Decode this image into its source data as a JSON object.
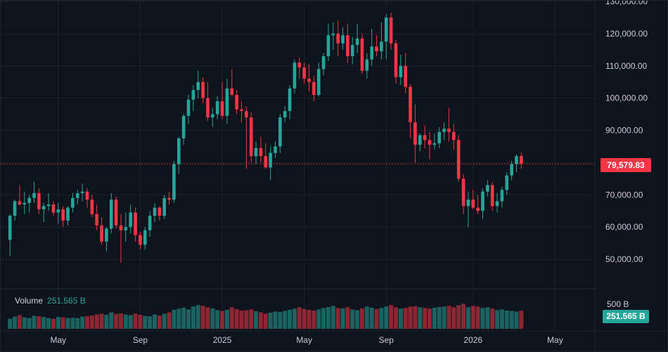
{
  "chart_data": {
    "type": "candlestick",
    "timeframe": "weekly",
    "y_ticks": [
      "130,000.00",
      "120,000.00",
      "110,000.00",
      "100,000.00",
      "90,000.00",
      "80,000.00",
      "70,000.00",
      "60,000.00",
      "50,000.00"
    ],
    "y_tick_values": [
      130000,
      120000,
      110000,
      100000,
      90000,
      80000,
      70000,
      60000,
      50000
    ],
    "x_ticks": [
      "May",
      "Sep",
      "2025",
      "May",
      "Sep",
      "2026",
      "May"
    ],
    "x_tick_index": [
      10,
      27,
      44,
      61,
      78,
      96,
      113
    ],
    "ylim": [
      40000,
      130000
    ],
    "last_price": "79,579.83",
    "last_price_value": 79579.83,
    "volume_label": "Volume",
    "volume_value": "251.565 B",
    "volume_scale_label": "500 B",
    "colors": {
      "up": "#26a69a",
      "down": "#f23645",
      "background": "#0f131c",
      "grid": "#1b2130"
    },
    "candles": [
      [
        56000,
        64000,
        51000,
        63500
      ],
      [
        63500,
        68500,
        62000,
        68000
      ],
      [
        68000,
        73000,
        66500,
        67000
      ],
      [
        67000,
        71000,
        64000,
        67500
      ],
      [
        67500,
        70000,
        64500,
        69000
      ],
      [
        69000,
        74000,
        67500,
        70500
      ],
      [
        70500,
        72000,
        64000,
        65500
      ],
      [
        65500,
        67500,
        61500,
        66500
      ],
      [
        66500,
        70500,
        65000,
        67000
      ],
      [
        67000,
        68000,
        63500,
        64500
      ],
      [
        64500,
        67500,
        61000,
        65500
      ],
      [
        65500,
        66500,
        60000,
        62000
      ],
      [
        62000,
        66500,
        60500,
        66000
      ],
      [
        66000,
        70500,
        64500,
        69000
      ],
      [
        69000,
        71500,
        67000,
        70500
      ],
      [
        70500,
        73500,
        68000,
        71000
      ],
      [
        71000,
        72000,
        66000,
        68500
      ],
      [
        68500,
        70000,
        63000,
        64000
      ],
      [
        64000,
        67000,
        59000,
        60500
      ],
      [
        60500,
        63000,
        54500,
        55500
      ],
      [
        55500,
        60000,
        52500,
        59500
      ],
      [
        59500,
        70500,
        58000,
        68500
      ],
      [
        68500,
        69500,
        59500,
        60500
      ],
      [
        60500,
        64000,
        49000,
        59000
      ],
      [
        59000,
        64500,
        55500,
        60000
      ],
      [
        60000,
        67000,
        58000,
        64500
      ],
      [
        64500,
        66000,
        55500,
        57500
      ],
      [
        57500,
        58500,
        53000,
        54500
      ],
      [
        54500,
        60000,
        53000,
        59000
      ],
      [
        59000,
        65000,
        57000,
        63500
      ],
      [
        63500,
        67500,
        61500,
        66000
      ],
      [
        66000,
        66500,
        62000,
        63500
      ],
      [
        63500,
        70000,
        62500,
        69000
      ],
      [
        69000,
        71000,
        67000,
        68500
      ],
      [
        68500,
        80500,
        67500,
        79500
      ],
      [
        79500,
        88000,
        76500,
        87500
      ],
      [
        87500,
        95000,
        85500,
        94500
      ],
      [
        94500,
        101000,
        92000,
        99500
      ],
      [
        99500,
        104000,
        96000,
        102500
      ],
      [
        102500,
        108500,
        100000,
        105000
      ],
      [
        105000,
        106500,
        98500,
        100000
      ],
      [
        100000,
        105000,
        93000,
        94000
      ],
      [
        94000,
        97000,
        91000,
        95000
      ],
      [
        95000,
        100500,
        93500,
        99000
      ],
      [
        99000,
        105000,
        93500,
        94500
      ],
      [
        94500,
        106000,
        92000,
        103000
      ],
      [
        103000,
        109000,
        100500,
        101000
      ],
      [
        101000,
        102500,
        95000,
        96500
      ],
      [
        96500,
        99000,
        92500,
        96000
      ],
      [
        96000,
        97500,
        78000,
        94000
      ],
      [
        94000,
        95500,
        80000,
        82000
      ],
      [
        82000,
        86500,
        79500,
        84500
      ],
      [
        84500,
        88000,
        80000,
        82000
      ],
      [
        82000,
        86000,
        78000,
        78500
      ],
      [
        78500,
        85000,
        74500,
        83000
      ],
      [
        83000,
        86500,
        81500,
        85000
      ],
      [
        85000,
        95000,
        83000,
        94000
      ],
      [
        94000,
        97500,
        92500,
        96000
      ],
      [
        96000,
        104000,
        93500,
        103000
      ],
      [
        103000,
        112000,
        101500,
        111000
      ],
      [
        111000,
        112500,
        106000,
        109500
      ],
      [
        109500,
        111000,
        104500,
        106000
      ],
      [
        106000,
        110500,
        102000,
        105000
      ],
      [
        105000,
        107000,
        99000,
        101000
      ],
      [
        101000,
        111000,
        100500,
        109000
      ],
      [
        109000,
        114000,
        107000,
        113000
      ],
      [
        113000,
        123000,
        111500,
        119500
      ],
      [
        119500,
        123500,
        115000,
        120000
      ],
      [
        120000,
        124000,
        113000,
        117000
      ],
      [
        117000,
        122000,
        115000,
        119500
      ],
      [
        119500,
        123000,
        111000,
        113000
      ],
      [
        113000,
        119000,
        110500,
        116500
      ],
      [
        116500,
        123000,
        114000,
        118500
      ],
      [
        118500,
        120000,
        107500,
        108500
      ],
      [
        108500,
        114000,
        106000,
        112000
      ],
      [
        112000,
        121500,
        110000,
        116000
      ],
      [
        116000,
        119500,
        113000,
        114500
      ],
      [
        114500,
        123500,
        112000,
        117500
      ],
      [
        117500,
        126000,
        112000,
        125000
      ],
      [
        125000,
        126500,
        115000,
        117000
      ],
      [
        117000,
        118000,
        104500,
        106500
      ],
      [
        106500,
        113500,
        104000,
        110000
      ],
      [
        110000,
        114000,
        101500,
        103500
      ],
      [
        103500,
        104500,
        87500,
        92500
      ],
      [
        92500,
        98000,
        80000,
        85500
      ],
      [
        85500,
        89000,
        83500,
        88500
      ],
      [
        88500,
        91500,
        84500,
        87000
      ],
      [
        87000,
        89500,
        81000,
        85500
      ],
      [
        85500,
        89000,
        84000,
        86000
      ],
      [
        86000,
        91000,
        84500,
        89500
      ],
      [
        89500,
        92500,
        87000,
        90500
      ],
      [
        90500,
        97000,
        86500,
        89500
      ],
      [
        89500,
        92000,
        84000,
        87000
      ],
      [
        87000,
        88500,
        74000,
        75000
      ],
      [
        75000,
        76500,
        64000,
        66500
      ],
      [
        66500,
        71000,
        60000,
        68500
      ],
      [
        68500,
        71500,
        65500,
        66000
      ],
      [
        66000,
        70000,
        64000,
        65000
      ],
      [
        65000,
        72000,
        62500,
        71000
      ],
      [
        71000,
        74500,
        69500,
        73000
      ],
      [
        73000,
        74000,
        65000,
        66500
      ],
      [
        66500,
        70500,
        64500,
        68000
      ],
      [
        68000,
        72500,
        66000,
        71500
      ],
      [
        71500,
        77000,
        70000,
        76000
      ],
      [
        76000,
        80500,
        74500,
        79500
      ],
      [
        79500,
        82500,
        77000,
        82000
      ],
      [
        82000,
        83000,
        78000,
        79579.83
      ]
    ],
    "volumes": [
      140,
      170,
      190,
      160,
      150,
      180,
      175,
      165,
      150,
      140,
      165,
      160,
      150,
      155,
      150,
      170,
      175,
      185,
      200,
      210,
      195,
      230,
      205,
      215,
      200,
      190,
      210,
      195,
      180,
      175,
      200,
      185,
      210,
      230,
      265,
      280,
      295,
      270,
      310,
      330,
      320,
      300,
      285,
      260,
      250,
      265,
      300,
      275,
      255,
      260,
      270,
      245,
      230,
      210,
      225,
      240,
      235,
      250,
      265,
      280,
      300,
      275,
      265,
      255,
      270,
      290,
      305,
      320,
      290,
      285,
      300,
      270,
      260,
      285,
      310,
      295,
      275,
      290,
      310,
      330,
      300,
      280,
      290,
      310,
      315,
      300,
      290,
      280,
      295,
      305,
      310,
      320,
      300,
      330,
      350,
      300,
      320,
      310,
      290,
      300,
      280,
      260,
      270,
      255,
      250,
      240,
      251.565
    ]
  }
}
